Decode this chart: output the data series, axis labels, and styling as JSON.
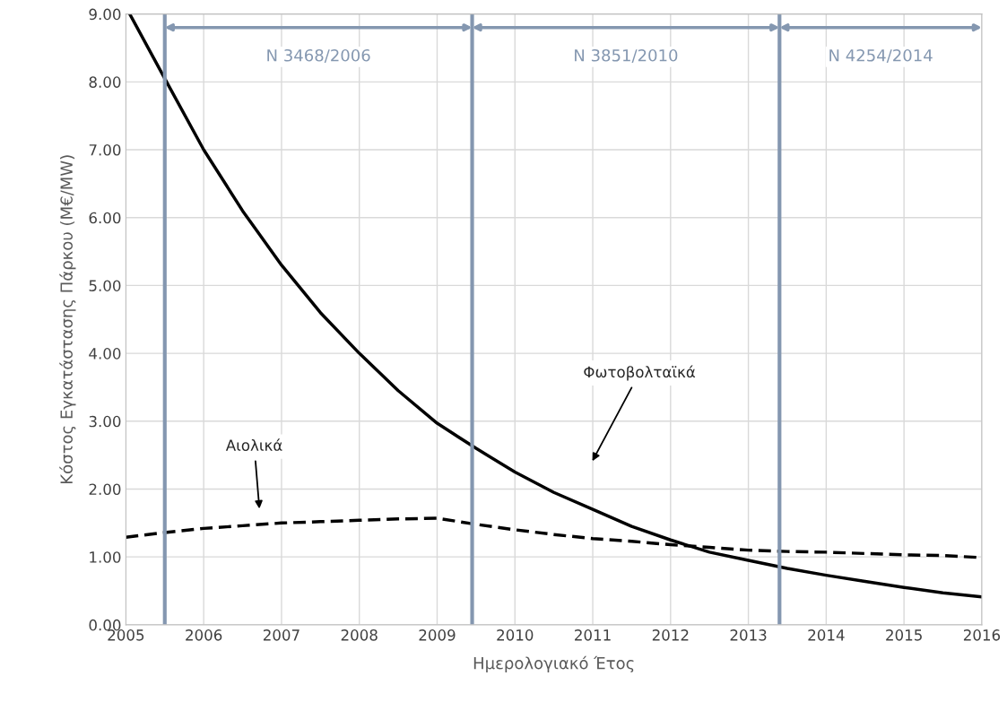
{
  "chart_data": {
    "type": "line",
    "xlabel": "Ημερολογιακό Έτος",
    "ylabel": "Κόστος Εγκατάστασης Πάρκου (Μ€/MW)",
    "series": [
      {
        "color": "#000000",
        "line_style": "solid",
        "x": [
          2005.05,
          2005.5,
          2006,
          2006.5,
          2007,
          2007.5,
          2008,
          2008.5,
          2009,
          2009.5,
          2010,
          2010.5,
          2011,
          2011.5,
          2012,
          2012.5,
          2013,
          2013.5,
          2014,
          2014.5,
          2015,
          2015.5,
          2016
        ],
        "values": [
          9.0,
          8.05,
          7.0,
          6.1,
          5.3,
          4.6,
          4.0,
          3.45,
          2.97,
          2.6,
          2.25,
          1.95,
          1.7,
          1.45,
          1.25,
          1.07,
          0.95,
          0.83,
          0.73,
          0.64,
          0.55,
          0.47,
          0.41
        ]
      },
      {
        "color": "#000000",
        "line_style": "dashed",
        "x": [
          2005,
          2005.5,
          2006,
          2006.5,
          2007,
          2007.5,
          2008,
          2008.5,
          2009,
          2009.5,
          2010,
          2010.5,
          2011,
          2011.5,
          2012,
          2012.5,
          2013,
          2013.5,
          2014,
          2014.5,
          2015,
          2015.5,
          2016
        ],
        "values": [
          1.29,
          1.36,
          1.42,
          1.46,
          1.5,
          1.52,
          1.54,
          1.56,
          1.57,
          1.48,
          1.4,
          1.33,
          1.27,
          1.23,
          1.18,
          1.14,
          1.1,
          1.08,
          1.07,
          1.05,
          1.03,
          1.02,
          0.99
        ]
      }
    ],
    "xlim": [
      2005,
      2016
    ],
    "xticks": [
      2005,
      2006,
      2007,
      2008,
      2009,
      2010,
      2011,
      2012,
      2013,
      2014,
      2015,
      2016
    ],
    "ylim": [
      0,
      9
    ],
    "yticks": [
      {
        "value": 0,
        "label": "0.00"
      },
      {
        "value": 1,
        "label": "1.00"
      },
      {
        "value": 2,
        "label": "2.00"
      },
      {
        "value": 3,
        "label": "3.00"
      },
      {
        "value": 4,
        "label": "4.00"
      },
      {
        "value": 5,
        "label": "5.00"
      },
      {
        "value": 6,
        "label": "6.00"
      },
      {
        "value": 7,
        "label": "7.00"
      },
      {
        "value": 8,
        "label": "8.00"
      },
      {
        "value": 9,
        "label": "9.00"
      }
    ],
    "grid": true,
    "legend": false,
    "ref_lines": [
      {
        "axis": "x",
        "value": 2005.5,
        "label": "N 3468/2006",
        "color": "#8497b0"
      },
      {
        "axis": "x",
        "value": 2009.45,
        "label": "N 3851/2010",
        "color": "#8497b0"
      },
      {
        "axis": "x",
        "value": 2013.4,
        "label": "N 4254/2014",
        "color": "#8497b0"
      }
    ],
    "annotations": [
      "Φωτοβολταϊκά",
      "Αιολικά"
    ]
  }
}
